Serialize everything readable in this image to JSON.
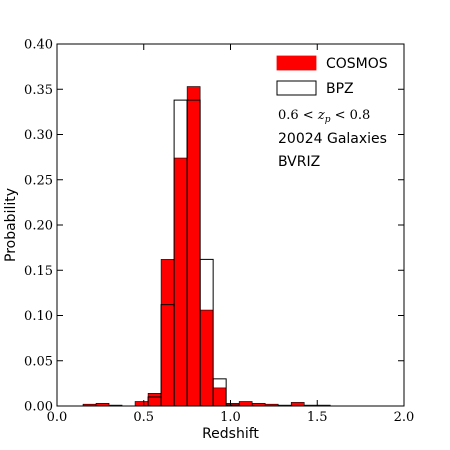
{
  "chart_data": {
    "type": "bar",
    "xlabel": "Redshift",
    "ylabel": "Probability",
    "xlim": [
      0.0,
      2.0
    ],
    "ylim": [
      0.0,
      0.4
    ],
    "xticks": [
      "0.0",
      "0.5",
      "1.0",
      "1.5",
      "2.0"
    ],
    "yticks": [
      "0.00",
      "0.05",
      "0.10",
      "0.15",
      "0.20",
      "0.25",
      "0.30",
      "0.35",
      "0.40"
    ],
    "bin_width": 0.075,
    "bin_edges_start": 0.15,
    "series": [
      {
        "name": "COSMOS",
        "style": "filled",
        "color": "#ff0000",
        "values": [
          0.002,
          0.003,
          0.001,
          0.0,
          0.005,
          0.014,
          0.162,
          0.274,
          0.353,
          0.106,
          0.02,
          0.003,
          0.005,
          0.003,
          0.002,
          0.001,
          0.004,
          0.001,
          0.001,
          0.0,
          0.0,
          0.0,
          0.0,
          0.0
        ]
      },
      {
        "name": "BPZ",
        "style": "outline",
        "color": "#000000",
        "values": [
          0.0,
          0.0,
          0.0,
          0.0,
          0.0,
          0.01,
          0.112,
          0.338,
          0.338,
          0.162,
          0.03,
          0.001,
          0.0,
          0.0,
          0.0,
          0.0,
          0.0,
          0.0,
          0.0,
          0.0,
          0.0,
          0.0,
          0.0,
          0.0
        ]
      }
    ],
    "legend": {
      "placement": "top-right",
      "entries": [
        "COSMOS",
        "BPZ"
      ]
    },
    "annotations": {
      "range": "0.6 < z_p < 0.8",
      "range_parts": [
        "0.6 < ",
        "z",
        "p",
        " < 0.8"
      ],
      "count": "20024 Galaxies",
      "filters": "BVRIZ"
    },
    "grid": false
  }
}
